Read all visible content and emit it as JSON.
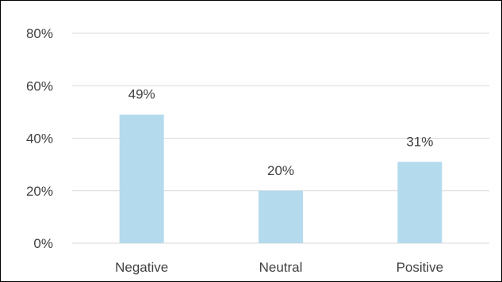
{
  "chart_data": {
    "type": "bar",
    "title": "",
    "xlabel": "",
    "ylabel": "",
    "categories": [
      "Negative",
      "Neutral",
      "Positive"
    ],
    "values": [
      49,
      20,
      31
    ],
    "data_labels": [
      "49%",
      "20%",
      "31%"
    ],
    "ylim": [
      0,
      80
    ],
    "y_ticks": [
      0,
      20,
      40,
      60,
      80
    ],
    "y_tick_labels": [
      "0%",
      "20%",
      "40%",
      "60%",
      "80%"
    ],
    "unit": "%",
    "grid": true,
    "legend": "none",
    "bar_color": "#b4daee",
    "grid_color": "#d9d9d9",
    "text_color": "#404040"
  }
}
